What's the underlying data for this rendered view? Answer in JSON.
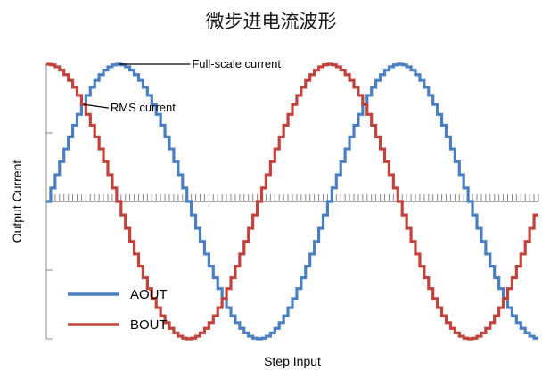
{
  "chart_data": {
    "type": "line",
    "title": "微步进电流波形",
    "xlabel": "Step Input",
    "ylabel": "Output Current",
    "ylim": [
      -1,
      1
    ],
    "step_style": "staircase",
    "steps_per_period": 64,
    "period_count": 1.75,
    "x_ticks_labeled": false,
    "y_ticks_labeled": false,
    "grid": false,
    "legend_position": "bottom-left",
    "series": [
      {
        "name": "AOUT",
        "color": "#4a7fc1",
        "waveform": "sine",
        "phase_steps": 0
      },
      {
        "name": "BOUT",
        "color": "#c0443d",
        "waveform": "cosine",
        "phase_steps": 16
      }
    ],
    "annotations": [
      {
        "text": "Full-scale current",
        "target_step": 16,
        "target_value": 1.0
      },
      {
        "text": "RMS current",
        "target_step": 8,
        "target_value": 0.707
      }
    ]
  }
}
